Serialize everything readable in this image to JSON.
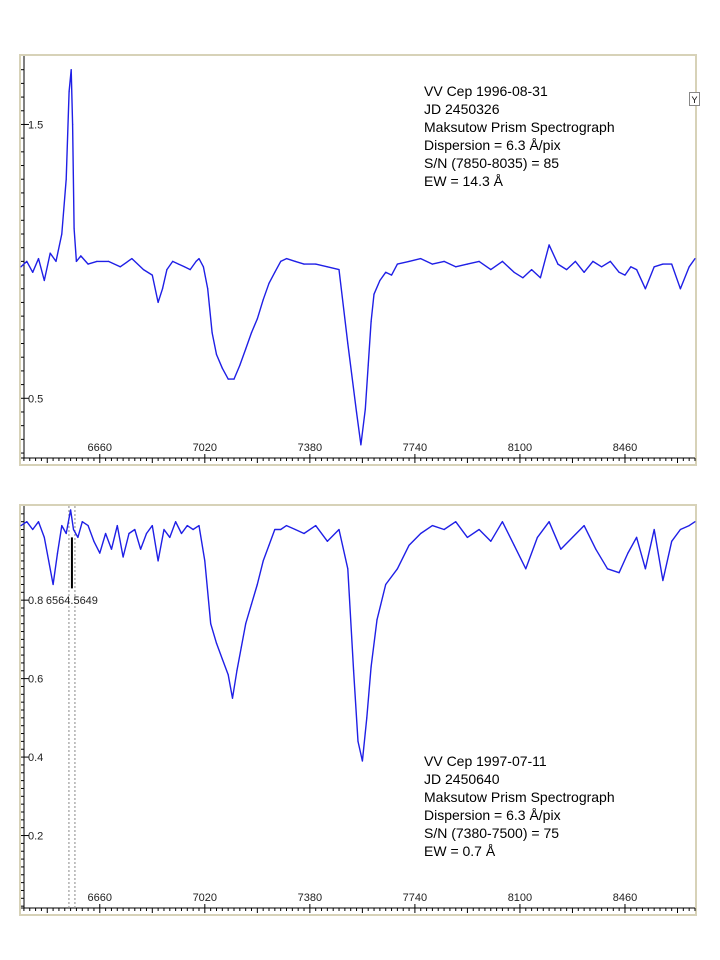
{
  "colors": {
    "line": "#1f1fe6",
    "frame": "#d7d2b8",
    "axis": "#000000",
    "tick_text": "#222222",
    "marker": "#888888"
  },
  "ui": {
    "y_button_label": "Y"
  },
  "chart_data": [
    {
      "type": "line",
      "title": "",
      "xlabel": "",
      "ylabel": "",
      "xlim": [
        6390,
        8700
      ],
      "ylim": [
        0.26,
        1.75
      ],
      "x_ticks": [
        "6660",
        "7020",
        "7380",
        "7740",
        "8100",
        "8460"
      ],
      "y_ticks": [
        "0.5",
        "1.5"
      ],
      "annotation_lines": [
        "VV Cep 1996-08-31",
        "JD 2450326",
        "Maksutow Prism Spectrograph",
        "Dispersion = 6.3 Å/pix",
        "S/N (7850-8035) = 85",
        "EW = 14.3 Å"
      ],
      "series": [
        {
          "x": [
            6390,
            6410,
            6430,
            6450,
            6470,
            6490,
            6510,
            6530,
            6545,
            6555,
            6562,
            6567,
            6572,
            6580,
            6595,
            6620,
            6650,
            6690,
            6730,
            6770,
            6810,
            6840,
            6860,
            6875,
            6890,
            6910,
            6930,
            6950,
            6970,
            6990,
            7000,
            7015,
            7030,
            7045,
            7060,
            7080,
            7100,
            7120,
            7140,
            7160,
            7180,
            7200,
            7220,
            7240,
            7260,
            7280,
            7300,
            7330,
            7360,
            7400,
            7440,
            7480,
            7510,
            7540,
            7555,
            7570,
            7580,
            7590,
            7600,
            7620,
            7640,
            7660,
            7680,
            7720,
            7760,
            7800,
            7840,
            7880,
            7920,
            7960,
            8000,
            8040,
            8080,
            8110,
            8140,
            8170,
            8200,
            8230,
            8260,
            8290,
            8320,
            8350,
            8380,
            8410,
            8440,
            8460,
            8480,
            8500,
            8530,
            8560,
            8590,
            8620,
            8650,
            8680,
            8700
          ],
          "y": [
            0.98,
            1.0,
            0.96,
            1.01,
            0.93,
            1.03,
            1.0,
            1.1,
            1.3,
            1.62,
            1.7,
            1.5,
            1.12,
            1.0,
            1.02,
            0.99,
            1.0,
            1.0,
            0.98,
            1.01,
            0.97,
            0.95,
            0.85,
            0.9,
            0.97,
            1.0,
            0.99,
            0.98,
            0.97,
            1.0,
            1.01,
            0.98,
            0.9,
            0.74,
            0.66,
            0.61,
            0.57,
            0.57,
            0.62,
            0.68,
            0.74,
            0.79,
            0.86,
            0.92,
            0.96,
            1.0,
            1.01,
            1.0,
            0.99,
            0.99,
            0.98,
            0.97,
            0.7,
            0.45,
            0.33,
            0.46,
            0.62,
            0.78,
            0.88,
            0.93,
            0.96,
            0.95,
            0.99,
            1.0,
            1.01,
            0.99,
            1.0,
            0.98,
            0.99,
            1.0,
            0.97,
            1.0,
            0.96,
            0.94,
            0.97,
            0.94,
            1.06,
            0.99,
            0.97,
            1.0,
            0.96,
            1.0,
            0.98,
            1.0,
            0.96,
            0.95,
            0.98,
            0.97,
            0.9,
            0.98,
            0.99,
            0.99,
            0.9,
            0.98,
            1.01
          ]
        }
      ]
    },
    {
      "type": "line",
      "title": "",
      "xlabel": "",
      "ylabel": "",
      "xlim": [
        6390,
        8700
      ],
      "ylim": [
        0.0,
        1.04
      ],
      "x_ticks": [
        "6660",
        "7020",
        "7380",
        "7740",
        "8100",
        "8460"
      ],
      "y_ticks": [
        "0.2",
        "0.4",
        "0.6",
        "0.8"
      ],
      "annotation_lines": [
        "VV Cep 1997-07-11",
        "JD 2450640",
        "Maksutow Prism Spectrograph",
        "Dispersion = 6.3 Å/pix",
        "S/N (7380-7500) = 75",
        "EW = 0.7 Å"
      ],
      "marker_label": "6564.5649",
      "marker_x": 6564.5649,
      "series": [
        {
          "x": [
            6390,
            6410,
            6430,
            6450,
            6470,
            6485,
            6500,
            6515,
            6530,
            6545,
            6560,
            6570,
            6585,
            6600,
            6620,
            6640,
            6660,
            6680,
            6700,
            6720,
            6740,
            6760,
            6780,
            6800,
            6820,
            6840,
            6860,
            6880,
            6900,
            6920,
            6940,
            6960,
            6980,
            7000,
            7020,
            7040,
            7060,
            7080,
            7100,
            7115,
            7130,
            7145,
            7160,
            7180,
            7200,
            7220,
            7240,
            7260,
            7280,
            7300,
            7330,
            7360,
            7400,
            7440,
            7480,
            7510,
            7530,
            7545,
            7560,
            7575,
            7590,
            7610,
            7640,
            7680,
            7720,
            7760,
            7800,
            7840,
            7880,
            7920,
            7960,
            8000,
            8040,
            8080,
            8120,
            8160,
            8200,
            8240,
            8280,
            8320,
            8360,
            8400,
            8440,
            8470,
            8500,
            8530,
            8560,
            8590,
            8620,
            8650,
            8680,
            8700
          ],
          "y": [
            0.99,
            1.0,
            0.98,
            1.0,
            0.96,
            0.9,
            0.84,
            0.92,
            0.99,
            0.97,
            1.03,
            0.98,
            0.96,
            1.0,
            0.99,
            0.95,
            0.92,
            0.97,
            0.93,
            0.99,
            0.91,
            0.97,
            0.98,
            0.93,
            0.97,
            0.99,
            0.9,
            0.98,
            0.96,
            1.0,
            0.97,
            0.99,
            0.98,
            0.99,
            0.9,
            0.74,
            0.69,
            0.65,
            0.61,
            0.55,
            0.62,
            0.68,
            0.74,
            0.79,
            0.84,
            0.9,
            0.94,
            0.98,
            0.98,
            0.99,
            0.98,
            0.97,
            0.99,
            0.95,
            0.98,
            0.88,
            0.62,
            0.44,
            0.39,
            0.5,
            0.63,
            0.75,
            0.84,
            0.88,
            0.94,
            0.97,
            0.99,
            0.98,
            1.0,
            0.96,
            0.98,
            0.95,
            1.0,
            0.94,
            0.88,
            0.96,
            1.0,
            0.93,
            0.96,
            0.99,
            0.93,
            0.88,
            0.87,
            0.92,
            0.96,
            0.88,
            0.98,
            0.85,
            0.95,
            0.98,
            0.99,
            1.0
          ]
        }
      ]
    }
  ]
}
